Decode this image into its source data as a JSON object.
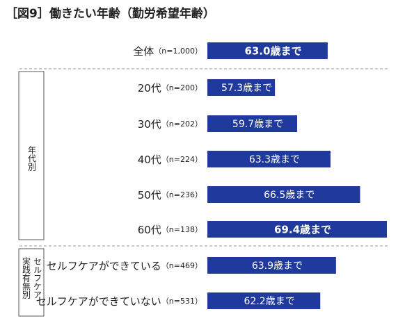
{
  "chart_data": {
    "type": "hbar",
    "title": "［図9］働きたい年齢（勤労希望年齢）",
    "categories": [
      "全体",
      "20代",
      "30代",
      "40代",
      "50代",
      "60代",
      "セルフケアができている",
      "セルフケアができていない"
    ],
    "sample_sizes": [
      "（n=1,000）",
      "（n=200）",
      "（n=202）",
      "（n=224）",
      "（n=236）",
      "（n=138）",
      "（n=469）",
      "（n=531）"
    ],
    "values": [
      63.0,
      57.3,
      59.7,
      63.3,
      66.5,
      69.4,
      63.9,
      62.2
    ],
    "value_labels": [
      "63.0歳まで",
      "57.3歳まで",
      "59.7歳まで",
      "63.3歳まで",
      "66.5歳まで",
      "69.4歳まで",
      "63.9歳まで",
      "62.2歳まで"
    ],
    "bold_labels": [
      true,
      false,
      false,
      false,
      false,
      true,
      false,
      false
    ],
    "color": "#1f3a9c",
    "xlim": [
      50,
      70
    ],
    "groups": [
      {
        "lines": [
          "年代別"
        ]
      },
      {
        "lines": [
          "セルフケア",
          "実践有無別"
        ]
      }
    ]
  }
}
